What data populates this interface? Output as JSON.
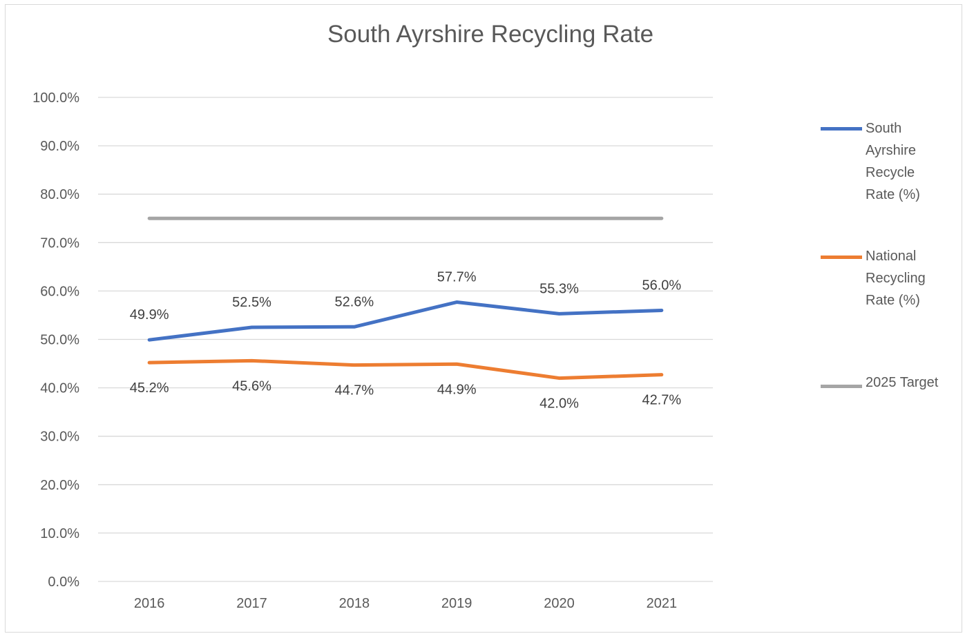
{
  "chart_data": {
    "type": "line",
    "title": "South Ayrshire Recycling Rate",
    "xlabel": "",
    "ylabel": "",
    "categories": [
      "2016",
      "2017",
      "2018",
      "2019",
      "2020",
      "2021"
    ],
    "ylim": [
      0,
      100
    ],
    "yticks": [
      "0.0%",
      "10.0%",
      "20.0%",
      "30.0%",
      "40.0%",
      "50.0%",
      "60.0%",
      "70.0%",
      "80.0%",
      "90.0%",
      "100.0%"
    ],
    "grid": true,
    "legend_position": "right",
    "series": [
      {
        "name": "South Ayrshire Recycle Rate (%)",
        "color": "#4472c4",
        "values": [
          49.9,
          52.5,
          52.6,
          57.7,
          55.3,
          56.0
        ],
        "labels": [
          "49.9%",
          "52.5%",
          "52.6%",
          "57.7%",
          "55.3%",
          "56.0%"
        ]
      },
      {
        "name": "National Recycling Rate (%)",
        "color": "#ed7d31",
        "values": [
          45.2,
          45.6,
          44.7,
          44.9,
          42.0,
          42.7
        ],
        "labels": [
          "45.2%",
          "45.6%",
          "44.7%",
          "44.9%",
          "42.0%",
          "42.7%"
        ]
      },
      {
        "name": "2025 Target",
        "color": "#a5a5a5",
        "values": [
          75,
          75,
          75,
          75,
          75,
          75
        ],
        "labels": []
      }
    ]
  }
}
